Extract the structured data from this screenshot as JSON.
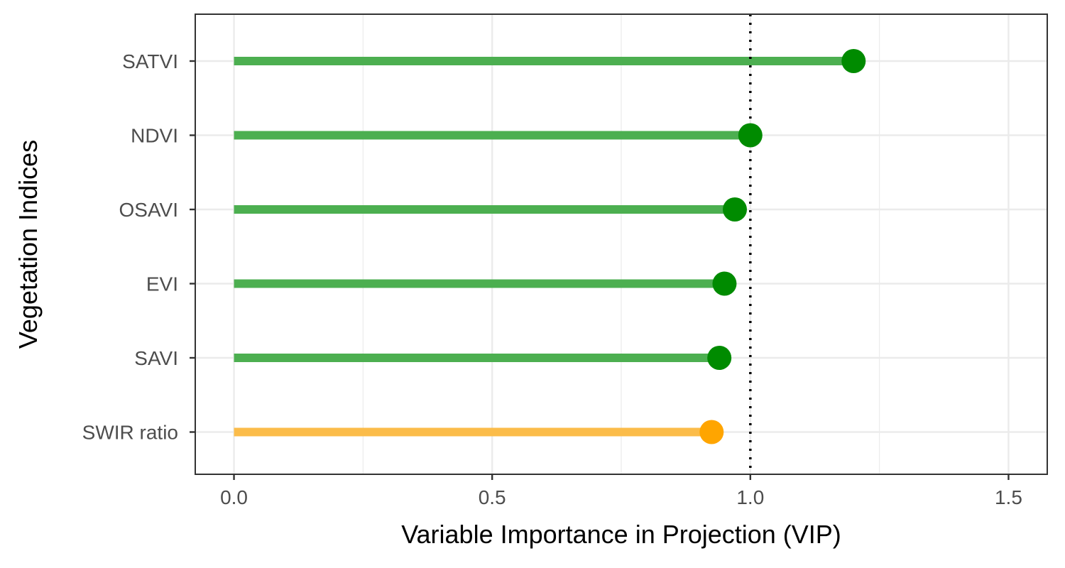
{
  "chart_data": {
    "type": "lollipop",
    "orientation": "horizontal",
    "xlabel": "Variable Importance in Projection (VIP)",
    "ylabel": "Vegetation Indices",
    "xlim": [
      -0.075,
      1.575
    ],
    "x_ticks": [
      0.0,
      0.5,
      1.0,
      1.5
    ],
    "x_tick_labels": [
      "0.0",
      "0.5",
      "1.0",
      "1.5"
    ],
    "reference_line": {
      "x": 1.0,
      "style": "dotted",
      "color": "#000000"
    },
    "grid": true,
    "legend": "none",
    "categories": [
      "SATVI",
      "NDVI",
      "OSAVI",
      "EVI",
      "SAVI",
      "SWIR ratio"
    ],
    "values": [
      1.2,
      1.0,
      0.97,
      0.95,
      0.94,
      0.925
    ],
    "colors": {
      "above_threshold_point": "#008b00",
      "above_threshold_stem": "#4caf50",
      "below_threshold_point": "#ffa500",
      "below_threshold_stem": "#fbbc4a"
    },
    "point_groups": [
      "green",
      "green",
      "green",
      "green",
      "green",
      "orange"
    ]
  }
}
